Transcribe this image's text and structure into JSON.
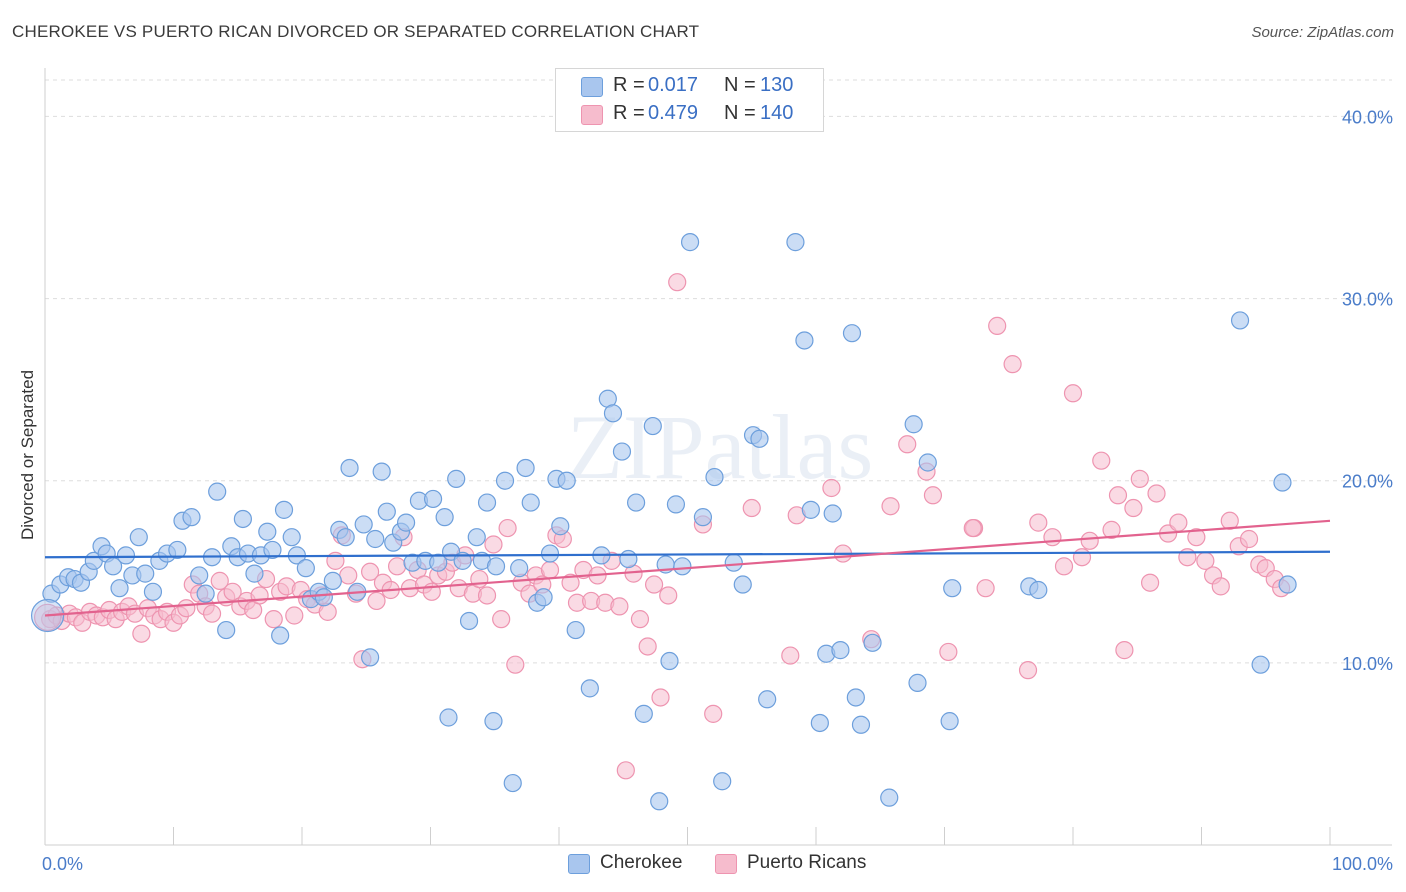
{
  "title": "CHEROKEE VS PUERTO RICAN DIVORCED OR SEPARATED CORRELATION CHART",
  "source": "Source: ZipAtlas.com",
  "watermark": "ZIPatlas",
  "legend_top": [
    {
      "r_label": "R =",
      "r_value": "0.017",
      "n_label": "N =",
      "n_value": "130"
    },
    {
      "r_label": "R =",
      "r_value": "0.479",
      "n_label": "N =",
      "n_value": "140"
    }
  ],
  "legend_bottom": [
    "Cherokee",
    "Puerto Ricans"
  ],
  "colors": {
    "cherokee_fill": "#a9c6ee",
    "cherokee_stroke": "#6d9fdc",
    "cherokee_line": "#2f6fcd",
    "pr_fill": "#f6bccd",
    "pr_stroke": "#ee94b0",
    "pr_line": "#e2628e",
    "axis_text": "#4a7cc9",
    "grid": "#dddddd"
  },
  "chart_data": {
    "type": "scatter",
    "title": "CHEROKEE VS PUERTO RICAN DIVORCED OR SEPARATED CORRELATION CHART",
    "xlabel": "",
    "ylabel": "Divorced or Separated",
    "xlim": [
      0,
      100
    ],
    "ylim": [
      0,
      42
    ],
    "x_tick_labels": [
      "0.0%",
      "100.0%"
    ],
    "y_ticks": [
      10,
      20,
      30,
      40
    ],
    "y_tick_labels": [
      "10.0%",
      "20.0%",
      "30.0%",
      "40.0%"
    ],
    "grid": true,
    "legend_position": "top-center",
    "series": [
      {
        "name": "Cherokee",
        "r": 0.017,
        "n": 130,
        "trend": [
          [
            0,
            15.8
          ],
          [
            100,
            16.1
          ]
        ],
        "points": [
          [
            0.5,
            13.8
          ],
          [
            1.2,
            14.3
          ],
          [
            1.8,
            14.7
          ],
          [
            2.3,
            14.6
          ],
          [
            2.8,
            14.4
          ],
          [
            3.4,
            15.0
          ],
          [
            3.8,
            15.6
          ],
          [
            4.4,
            16.4
          ],
          [
            4.8,
            16.0
          ],
          [
            5.3,
            15.3
          ],
          [
            5.8,
            14.1
          ],
          [
            6.3,
            15.9
          ],
          [
            6.8,
            14.8
          ],
          [
            7.3,
            16.9
          ],
          [
            7.8,
            14.9
          ],
          [
            8.4,
            13.9
          ],
          [
            8.9,
            15.6
          ],
          [
            9.5,
            16.0
          ],
          [
            10.3,
            16.2
          ],
          [
            10.7,
            17.8
          ],
          [
            11.4,
            18.0
          ],
          [
            12.0,
            14.8
          ],
          [
            12.5,
            13.8
          ],
          [
            13.0,
            15.8
          ],
          [
            13.4,
            19.4
          ],
          [
            14.1,
            11.8
          ],
          [
            14.5,
            16.4
          ],
          [
            15.0,
            15.8
          ],
          [
            15.4,
            17.9
          ],
          [
            15.8,
            16.0
          ],
          [
            16.3,
            14.9
          ],
          [
            16.8,
            15.9
          ],
          [
            17.3,
            17.2
          ],
          [
            17.7,
            16.2
          ],
          [
            18.3,
            11.5
          ],
          [
            18.6,
            18.4
          ],
          [
            19.2,
            16.9
          ],
          [
            19.6,
            15.9
          ],
          [
            20.3,
            15.2
          ],
          [
            20.7,
            13.5
          ],
          [
            21.3,
            13.9
          ],
          [
            21.7,
            13.6
          ],
          [
            22.4,
            14.5
          ],
          [
            22.9,
            17.3
          ],
          [
            23.4,
            16.9
          ],
          [
            23.7,
            20.7
          ],
          [
            24.3,
            13.9
          ],
          [
            24.8,
            17.6
          ],
          [
            25.3,
            10.3
          ],
          [
            25.7,
            16.8
          ],
          [
            26.2,
            20.5
          ],
          [
            26.6,
            18.3
          ],
          [
            27.1,
            16.6
          ],
          [
            27.7,
            17.2
          ],
          [
            28.1,
            17.7
          ],
          [
            28.6,
            15.5
          ],
          [
            29.1,
            18.9
          ],
          [
            29.6,
            15.6
          ],
          [
            30.2,
            19.0
          ],
          [
            30.6,
            15.5
          ],
          [
            31.1,
            18.0
          ],
          [
            31.6,
            16.1
          ],
          [
            32.0,
            20.1
          ],
          [
            32.5,
            15.6
          ],
          [
            33.0,
            12.3
          ],
          [
            33.6,
            16.9
          ],
          [
            34.0,
            15.6
          ],
          [
            34.4,
            18.8
          ],
          [
            35.1,
            15.3
          ],
          [
            35.8,
            20.0
          ],
          [
            36.4,
            3.4
          ],
          [
            36.9,
            15.2
          ],
          [
            37.4,
            20.7
          ],
          [
            37.8,
            18.8
          ],
          [
            38.3,
            13.3
          ],
          [
            38.8,
            13.6
          ],
          [
            39.3,
            16.0
          ],
          [
            39.8,
            20.1
          ],
          [
            40.1,
            17.5
          ],
          [
            40.6,
            20.0
          ],
          [
            41.3,
            11.8
          ],
          [
            42.4,
            8.6
          ],
          [
            43.3,
            15.9
          ],
          [
            43.8,
            24.5
          ],
          [
            44.2,
            23.7
          ],
          [
            44.9,
            21.6
          ],
          [
            45.4,
            15.7
          ],
          [
            46.0,
            18.8
          ],
          [
            46.6,
            7.2
          ],
          [
            47.3,
            23.0
          ],
          [
            47.8,
            2.4
          ],
          [
            48.3,
            15.4
          ],
          [
            48.6,
            10.1
          ],
          [
            49.1,
            18.7
          ],
          [
            49.6,
            15.3
          ],
          [
            50.2,
            33.1
          ],
          [
            51.2,
            18.0
          ],
          [
            52.1,
            20.2
          ],
          [
            53.6,
            15.5
          ],
          [
            54.3,
            14.3
          ],
          [
            55.1,
            22.5
          ],
          [
            55.6,
            22.3
          ],
          [
            56.2,
            8.0
          ],
          [
            58.4,
            33.1
          ],
          [
            59.1,
            27.7
          ],
          [
            59.6,
            18.4
          ],
          [
            60.3,
            6.7
          ],
          [
            60.8,
            10.5
          ],
          [
            61.3,
            18.2
          ],
          [
            61.9,
            10.7
          ],
          [
            62.8,
            28.1
          ],
          [
            63.1,
            8.1
          ],
          [
            63.5,
            6.6
          ],
          [
            64.4,
            11.1
          ],
          [
            65.7,
            2.6
          ],
          [
            67.6,
            23.1
          ],
          [
            67.9,
            8.9
          ],
          [
            68.7,
            21.0
          ],
          [
            70.4,
            6.8
          ],
          [
            70.6,
            14.1
          ],
          [
            76.6,
            14.2
          ],
          [
            77.3,
            14.0
          ],
          [
            93.0,
            28.8
          ],
          [
            94.6,
            9.9
          ],
          [
            96.3,
            19.9
          ],
          [
            96.7,
            14.3
          ],
          [
            31.4,
            7.0
          ],
          [
            34.9,
            6.8
          ],
          [
            52.7,
            3.5
          ]
        ]
      },
      {
        "name": "Puerto Ricans",
        "r": 0.479,
        "n": 140,
        "trend": [
          [
            0,
            12.6
          ],
          [
            100,
            17.8
          ]
        ],
        "points": [
          [
            0.4,
            12.4
          ],
          [
            0.9,
            12.6
          ],
          [
            1.3,
            12.3
          ],
          [
            1.9,
            12.7
          ],
          [
            2.4,
            12.5
          ],
          [
            2.9,
            12.2
          ],
          [
            3.5,
            12.8
          ],
          [
            4.0,
            12.6
          ],
          [
            4.5,
            12.5
          ],
          [
            5.0,
            12.9
          ],
          [
            5.5,
            12.4
          ],
          [
            6.0,
            12.8
          ],
          [
            6.5,
            13.1
          ],
          [
            7.0,
            12.7
          ],
          [
            7.5,
            11.6
          ],
          [
            8.0,
            13.0
          ],
          [
            8.5,
            12.6
          ],
          [
            9.0,
            12.4
          ],
          [
            9.5,
            12.8
          ],
          [
            10.0,
            12.2
          ],
          [
            10.5,
            12.6
          ],
          [
            11.0,
            13.0
          ],
          [
            11.5,
            14.3
          ],
          [
            12.0,
            13.8
          ],
          [
            12.5,
            13.1
          ],
          [
            13.0,
            12.7
          ],
          [
            13.6,
            14.5
          ],
          [
            14.1,
            13.6
          ],
          [
            14.6,
            13.9
          ],
          [
            15.2,
            13.1
          ],
          [
            15.7,
            13.4
          ],
          [
            16.2,
            12.9
          ],
          [
            16.7,
            13.7
          ],
          [
            17.2,
            14.6
          ],
          [
            17.8,
            12.4
          ],
          [
            18.3,
            13.9
          ],
          [
            18.8,
            14.2
          ],
          [
            19.4,
            12.6
          ],
          [
            19.9,
            14.0
          ],
          [
            20.4,
            13.5
          ],
          [
            21.0,
            13.2
          ],
          [
            21.5,
            13.7
          ],
          [
            22.0,
            12.8
          ],
          [
            22.6,
            15.6
          ],
          [
            23.1,
            17.0
          ],
          [
            23.6,
            14.8
          ],
          [
            24.2,
            13.8
          ],
          [
            24.7,
            10.2
          ],
          [
            25.3,
            15.0
          ],
          [
            25.8,
            13.4
          ],
          [
            26.3,
            14.4
          ],
          [
            26.9,
            14.0
          ],
          [
            27.4,
            15.3
          ],
          [
            27.9,
            16.9
          ],
          [
            28.4,
            14.1
          ],
          [
            29.0,
            15.1
          ],
          [
            29.5,
            14.3
          ],
          [
            30.1,
            13.9
          ],
          [
            30.6,
            14.8
          ],
          [
            31.2,
            15.0
          ],
          [
            31.7,
            15.5
          ],
          [
            32.2,
            14.1
          ],
          [
            32.7,
            15.9
          ],
          [
            33.3,
            13.8
          ],
          [
            33.8,
            14.6
          ],
          [
            34.4,
            13.7
          ],
          [
            34.9,
            16.5
          ],
          [
            35.5,
            12.4
          ],
          [
            36.0,
            17.4
          ],
          [
            36.6,
            9.9
          ],
          [
            37.1,
            14.4
          ],
          [
            37.7,
            13.8
          ],
          [
            38.2,
            14.8
          ],
          [
            38.7,
            14.3
          ],
          [
            39.3,
            15.1
          ],
          [
            39.8,
            17.0
          ],
          [
            40.3,
            16.8
          ],
          [
            40.9,
            14.4
          ],
          [
            41.4,
            13.3
          ],
          [
            41.9,
            15.1
          ],
          [
            42.5,
            13.4
          ],
          [
            43.0,
            14.8
          ],
          [
            43.6,
            13.3
          ],
          [
            44.1,
            15.6
          ],
          [
            44.7,
            13.1
          ],
          [
            45.2,
            4.1
          ],
          [
            45.8,
            14.9
          ],
          [
            46.3,
            12.4
          ],
          [
            46.9,
            10.9
          ],
          [
            47.4,
            14.3
          ],
          [
            47.9,
            8.1
          ],
          [
            48.5,
            13.7
          ],
          [
            49.2,
            30.9
          ],
          [
            51.2,
            17.6
          ],
          [
            52.0,
            7.2
          ],
          [
            55.0,
            18.5
          ],
          [
            58.0,
            10.4
          ],
          [
            58.5,
            18.1
          ],
          [
            61.2,
            19.6
          ],
          [
            62.1,
            16.0
          ],
          [
            64.3,
            11.3
          ],
          [
            65.8,
            18.6
          ],
          [
            67.1,
            22.0
          ],
          [
            68.6,
            20.5
          ],
          [
            69.1,
            19.2
          ],
          [
            70.3,
            10.6
          ],
          [
            72.3,
            17.4
          ],
          [
            73.2,
            14.1
          ],
          [
            74.1,
            28.5
          ],
          [
            75.3,
            26.4
          ],
          [
            76.5,
            9.6
          ],
          [
            77.3,
            17.7
          ],
          [
            78.4,
            16.9
          ],
          [
            79.3,
            15.3
          ],
          [
            80.0,
            24.8
          ],
          [
            80.7,
            15.8
          ],
          [
            81.3,
            16.7
          ],
          [
            82.2,
            21.1
          ],
          [
            83.0,
            17.3
          ],
          [
            83.5,
            19.2
          ],
          [
            84.0,
            10.7
          ],
          [
            84.7,
            18.5
          ],
          [
            85.2,
            20.1
          ],
          [
            86.0,
            14.4
          ],
          [
            86.5,
            19.3
          ],
          [
            87.4,
            17.1
          ],
          [
            88.2,
            17.7
          ],
          [
            88.9,
            15.8
          ],
          [
            89.6,
            16.9
          ],
          [
            90.3,
            15.6
          ],
          [
            90.9,
            14.8
          ],
          [
            91.5,
            14.2
          ],
          [
            92.2,
            17.8
          ],
          [
            92.9,
            16.4
          ],
          [
            93.7,
            16.8
          ],
          [
            94.5,
            15.4
          ],
          [
            95.0,
            15.2
          ],
          [
            95.7,
            14.6
          ],
          [
            96.2,
            14.1
          ],
          [
            72.2,
            17.4
          ]
        ]
      }
    ]
  }
}
